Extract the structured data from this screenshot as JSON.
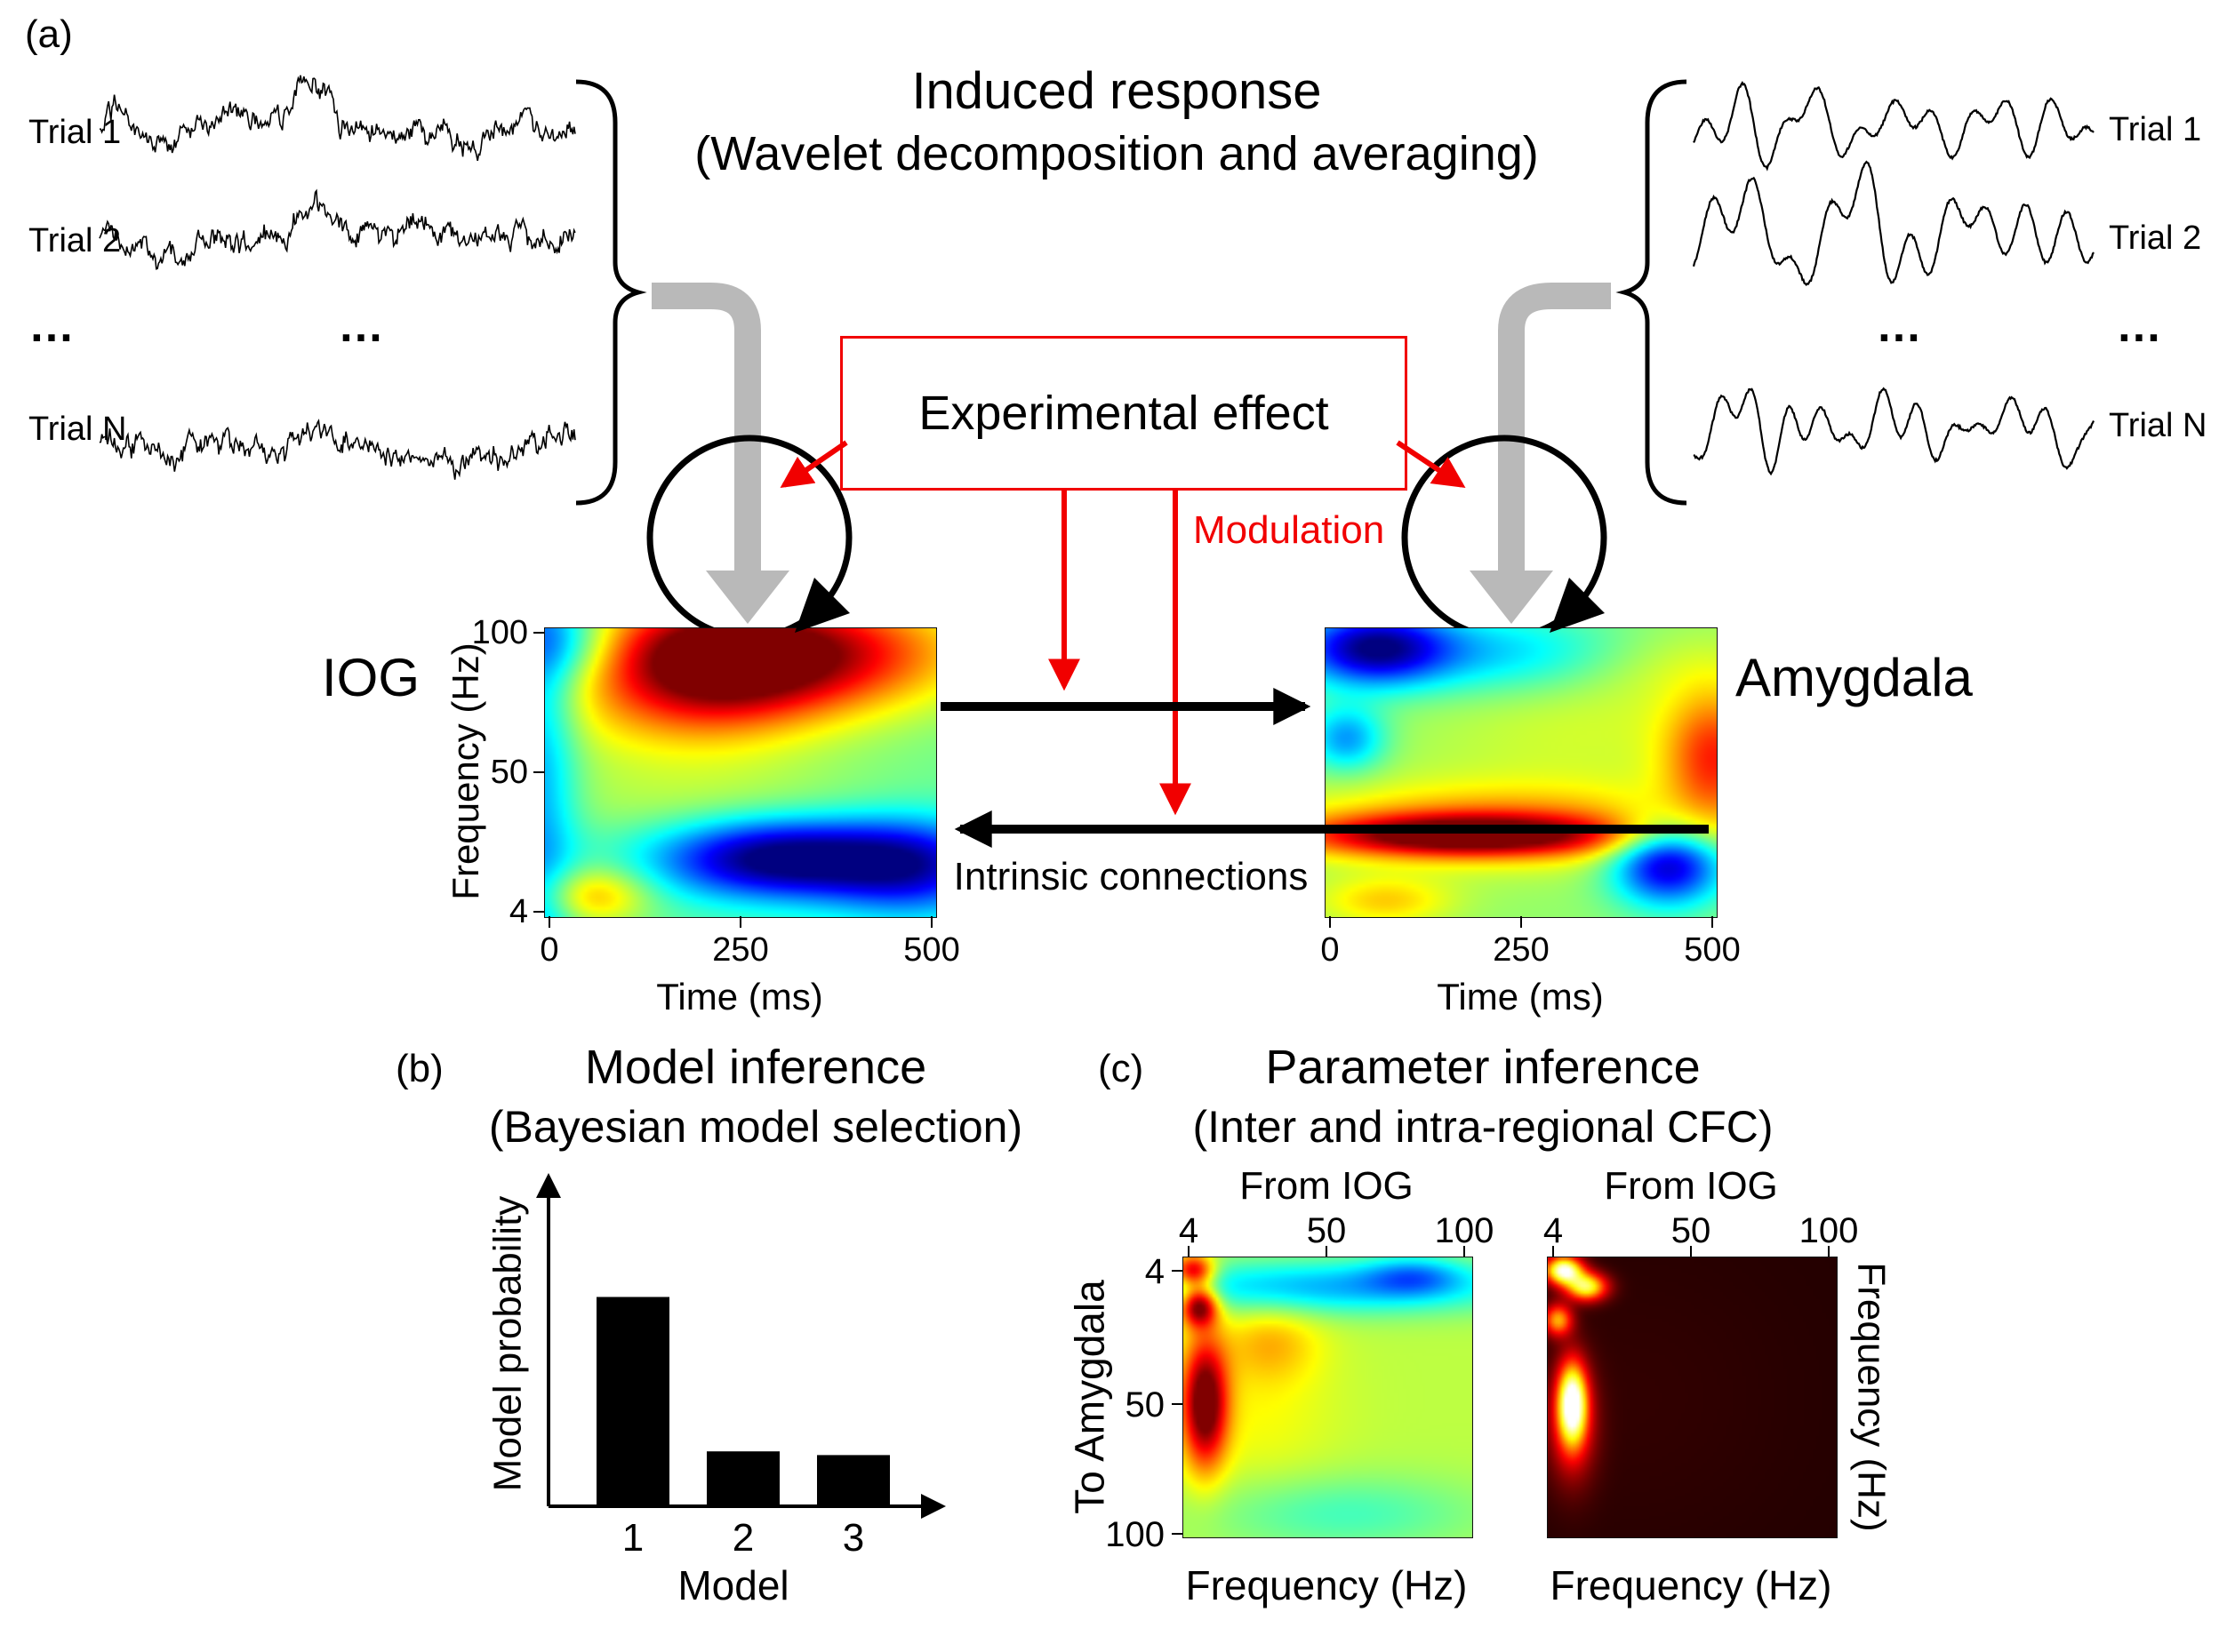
{
  "colors": {
    "red": "#f10000",
    "arrow_gray": "#b9b9b9",
    "bar_black": "#000000"
  },
  "panel_a": {
    "label": "(a)",
    "title": "Induced response",
    "subtitle": "(Wavelet decomposition and averaging)",
    "left_trial_labels": [
      "Trial 1",
      "Trial 2",
      "Trial N"
    ],
    "right_trial_labels": [
      "Trial 1",
      "Trial 2",
      "Trial N"
    ],
    "ellipsis": "…",
    "experimental_effect_label": "Experimental effect",
    "modulation_label": "Modulation",
    "intrinsic_connections_label": "Intrinsic connections",
    "region_left": "IOG",
    "region_right": "Amygdala",
    "freq_axis_label": "Frequency (Hz)",
    "freq_ticks": [
      "100",
      "50",
      "4"
    ],
    "time_axis_label": "Time (ms)",
    "time_ticks": [
      "0",
      "250",
      "500"
    ]
  },
  "panel_b": {
    "label": "(b)",
    "title": "Model inference",
    "subtitle": "(Bayesian model selection)",
    "ylabel": "Model probability",
    "xlabel": "Model",
    "xticks": [
      "1",
      "2",
      "3"
    ]
  },
  "panel_c": {
    "label": "(c)",
    "title": "Parameter inference",
    "subtitle": "(Inter and intra-regional CFC)",
    "from_label_left": "From IOG",
    "from_label_right": "From IOG",
    "top_ticks": [
      "4",
      "50",
      "100"
    ],
    "left_map_ylabel": "To Amygdala",
    "left_map_yticks": [
      "4",
      "50",
      "100"
    ],
    "right_map_ylabel": "Frequency (Hz)",
    "xlabel_left": "Frequency (Hz)",
    "xlabel_right": "Frequency (Hz)"
  },
  "waveforms": {
    "left": [
      {
        "seed": 101,
        "style": "noisy",
        "bump": 1.0
      },
      {
        "seed": 202,
        "style": "noisy",
        "bump": 1.3
      },
      {
        "seed": 303,
        "style": "noisy",
        "bump": 0.6
      }
    ],
    "right": [
      {
        "seed": 404,
        "style": "smooth",
        "bump": 0
      },
      {
        "seed": 505,
        "style": "smooth",
        "bump": 0
      },
      {
        "seed": 606,
        "style": "smooth",
        "bump": 0
      }
    ]
  },
  "chart_data": [
    {
      "id": "model_probability",
      "type": "bar",
      "title": "Model inference (Bayesian model selection)",
      "categories": [
        "1",
        "2",
        "3"
      ],
      "values": [
        0.84,
        0.215,
        0.2
      ],
      "xlabel": "Model",
      "ylabel": "Model probability",
      "ylim": [
        0,
        1
      ],
      "bar_color": "#000000"
    },
    {
      "id": "iog_tf",
      "type": "heatmap",
      "region": "IOG",
      "xlabel": "Time (ms)",
      "ylabel": "Frequency (Hz)",
      "x_range": [
        0,
        500
      ],
      "y_range": [
        4,
        100
      ],
      "x_ticks": [
        0,
        250,
        500
      ],
      "y_ticks": [
        100,
        50,
        4
      ],
      "colormap": "jet",
      "description": "Induced power increase 30-100 Hz peaking near 250 ms; power decrease 10-20 Hz after 200 ms",
      "base": 0.48,
      "blobs": [
        {
          "x": -0.02,
          "y": 0.5,
          "sx": 0.07,
          "sy": 0.9,
          "a": -0.22
        },
        {
          "x": 0.05,
          "y": 0.05,
          "sx": 0.1,
          "sy": 0.1,
          "a": -0.18
        },
        {
          "x": 0.42,
          "y": 0.1,
          "sx": 0.22,
          "sy": 0.16,
          "a": 0.52
        },
        {
          "x": 0.75,
          "y": 0.08,
          "sx": 0.25,
          "sy": 0.14,
          "a": 0.34
        },
        {
          "x": 0.3,
          "y": 0.3,
          "sx": 0.3,
          "sy": 0.18,
          "a": 0.1
        },
        {
          "x": 0.6,
          "y": 0.8,
          "sx": 0.22,
          "sy": 0.1,
          "a": -0.52
        },
        {
          "x": 0.95,
          "y": 0.83,
          "sx": 0.16,
          "sy": 0.12,
          "a": -0.35
        },
        {
          "x": 0.12,
          "y": 0.93,
          "sx": 0.1,
          "sy": 0.07,
          "a": 0.22
        },
        {
          "x": 0.45,
          "y": 0.62,
          "sx": 0.35,
          "sy": 0.1,
          "a": 0.06
        }
      ]
    },
    {
      "id": "amygdala_tf",
      "type": "heatmap",
      "region": "Amygdala",
      "xlabel": "Time (ms)",
      "x_range": [
        0,
        500
      ],
      "y_range": [
        4,
        100
      ],
      "x_ticks": [
        0,
        250,
        500
      ],
      "colormap": "jet",
      "description": "Induced power increase 10-20 Hz band 50-400 ms; decrease at high frequencies early",
      "base": 0.52,
      "blobs": [
        {
          "x": 0.12,
          "y": 0.06,
          "sx": 0.13,
          "sy": 0.09,
          "a": -0.42
        },
        {
          "x": 0.45,
          "y": 0.08,
          "sx": 0.35,
          "sy": 0.1,
          "a": -0.2
        },
        {
          "x": 0.85,
          "y": 0.1,
          "sx": 0.2,
          "sy": 0.1,
          "a": 0.12
        },
        {
          "x": 0.05,
          "y": 0.38,
          "sx": 0.07,
          "sy": 0.08,
          "a": -0.25
        },
        {
          "x": 0.35,
          "y": 0.72,
          "sx": 0.28,
          "sy": 0.05,
          "a": 0.46
        },
        {
          "x": 0.45,
          "y": 0.68,
          "sx": 0.38,
          "sy": 0.1,
          "a": 0.22
        },
        {
          "x": 0.88,
          "y": 0.82,
          "sx": 0.1,
          "sy": 0.1,
          "a": -0.48
        },
        {
          "x": 1.0,
          "y": 0.45,
          "sx": 0.09,
          "sy": 0.16,
          "a": 0.3
        },
        {
          "x": 0.15,
          "y": 0.95,
          "sx": 0.12,
          "sy": 0.06,
          "a": 0.15
        },
        {
          "x": 0.65,
          "y": 0.35,
          "sx": 0.3,
          "sy": 0.15,
          "a": 0.06
        }
      ]
    },
    {
      "id": "cfc_left",
      "type": "heatmap",
      "top_label": "From IOG",
      "ylabel": "To Amygdala",
      "xlabel": "Frequency (Hz)",
      "x_ticks": [
        4,
        50,
        100
      ],
      "y_ticks": [
        4,
        50,
        100
      ],
      "colormap": "jet",
      "description": "Inter-regional cross-frequency coupling IOG to Amygdala: strong coupling from low IOG frequencies",
      "base": 0.56,
      "blobs": [
        {
          "x": 0.5,
          "y": 0.1,
          "sx": 0.5,
          "sy": 0.07,
          "a": -0.26
        },
        {
          "x": 0.8,
          "y": 0.06,
          "sx": 0.12,
          "sy": 0.05,
          "a": -0.18
        },
        {
          "x": 0.03,
          "y": 0.04,
          "sx": 0.05,
          "sy": 0.04,
          "a": 0.42
        },
        {
          "x": 0.05,
          "y": 0.17,
          "sx": 0.045,
          "sy": 0.05,
          "a": 0.5
        },
        {
          "x": 0.07,
          "y": 0.52,
          "sx": 0.055,
          "sy": 0.16,
          "a": 0.5
        },
        {
          "x": 0.3,
          "y": 0.3,
          "sx": 0.12,
          "sy": 0.1,
          "a": 0.12
        },
        {
          "x": 0.55,
          "y": 0.92,
          "sx": 0.35,
          "sy": 0.1,
          "a": -0.12
        },
        {
          "x": 0.25,
          "y": 0.55,
          "sx": 0.2,
          "sy": 0.2,
          "a": 0.06
        }
      ]
    },
    {
      "id": "cfc_right",
      "type": "heatmap",
      "top_label": "From IOG",
      "ylabel": "Frequency (Hz)",
      "xlabel": "Frequency (Hz)",
      "x_ticks": [
        4,
        50,
        100
      ],
      "colormap": "hot",
      "description": "Intra-regional CFC: sparse significant coupling at low frequencies",
      "base": 0.05,
      "blobs": [
        {
          "x": 0.05,
          "y": 0.04,
          "sx": 0.045,
          "sy": 0.035,
          "a": 0.95
        },
        {
          "x": 0.13,
          "y": 0.1,
          "sx": 0.05,
          "sy": 0.035,
          "a": 0.75
        },
        {
          "x": 0.03,
          "y": 0.22,
          "sx": 0.035,
          "sy": 0.04,
          "a": 0.55
        },
        {
          "x": 0.08,
          "y": 0.52,
          "sx": 0.035,
          "sy": 0.1,
          "a": 0.9
        },
        {
          "x": 0.08,
          "y": 0.6,
          "sx": 0.06,
          "sy": 0.15,
          "a": 0.3
        },
        {
          "x": 0.3,
          "y": 0.5,
          "sx": 0.4,
          "sy": 0.4,
          "a": 0.02
        }
      ]
    }
  ]
}
